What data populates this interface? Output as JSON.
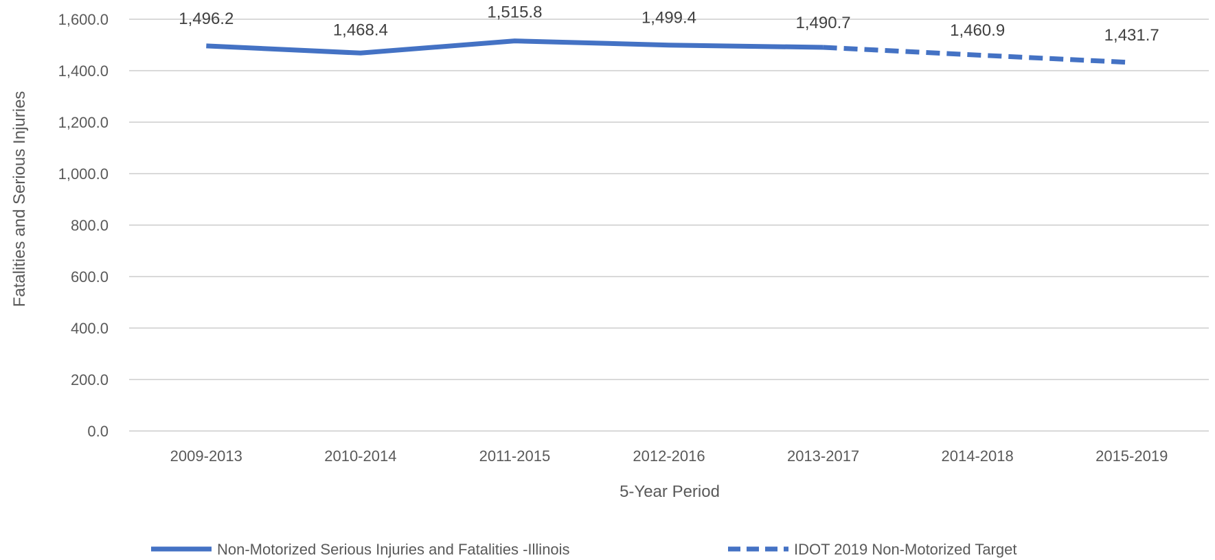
{
  "chart_data": {
    "type": "line",
    "categories": [
      "2009-2013",
      "2010-2014",
      "2011-2015",
      "2012-2016",
      "2013-2017",
      "2014-2018",
      "2015-2019"
    ],
    "series": [
      {
        "name": "Non-Motorized Serious Injuries and Fatalities  -Illinois",
        "values": [
          1496.2,
          1468.4,
          1515.8,
          1499.4,
          1490.7,
          null,
          null
        ],
        "labels": [
          "1,496.2",
          "1,468.4",
          "1,515.8",
          "1,499.4",
          "1,490.7",
          null,
          null
        ],
        "color": "#4472C4",
        "style": "solid"
      },
      {
        "name": "IDOT 2019 Non-Motorized Target",
        "values": [
          null,
          null,
          null,
          null,
          1490.7,
          1460.9,
          1431.7
        ],
        "labels": [
          null,
          null,
          null,
          null,
          null,
          "1,460.9",
          "1,431.7"
        ],
        "color": "#4472C4",
        "style": "dashed"
      }
    ],
    "xlabel": "5-Year Period",
    "ylabel": "Fatalities and Serious Injuries",
    "ylim": [
      0,
      1600
    ],
    "yticks": [
      "0.0",
      "200.0",
      "400.0",
      "600.0",
      "800.0",
      "1,000.0",
      "1,200.0",
      "1,400.0",
      "1,600.0"
    ],
    "grid": true,
    "gridline_color": "#D9D9D9",
    "legend": "bottom"
  }
}
